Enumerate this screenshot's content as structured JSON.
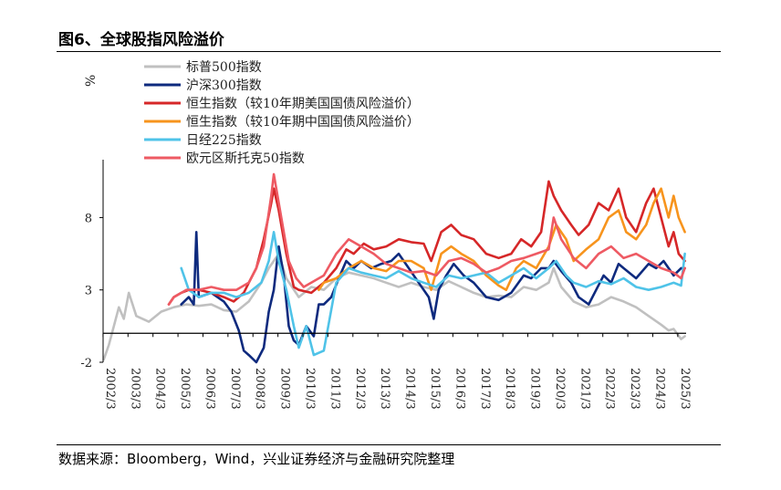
{
  "header": {
    "title": "图6、全球股指风险溢价"
  },
  "footer": {
    "source": "数据来源：Bloomberg，Wind，兴业证券经济与金融研究院整理"
  },
  "chart_data": {
    "type": "line",
    "title": "",
    "xlabel": "",
    "ylabel": "%",
    "ylim": [
      -2,
      12
    ],
    "yticks": [
      -2,
      3,
      8
    ],
    "xlim": [
      2002.17,
      2025.5
    ],
    "x_tick_labels": [
      "2002/3",
      "2003/3",
      "2004/3",
      "2005/3",
      "2006/3",
      "2007/3",
      "2008/3",
      "2009/3",
      "2010/3",
      "2011/3",
      "2012/3",
      "2013/3",
      "2014/3",
      "2015/3",
      "2016/3",
      "2017/3",
      "2018/3",
      "2019/3",
      "2020/3",
      "2021/3",
      "2022/3",
      "2023/3",
      "2024/3",
      "2025/3"
    ],
    "legend_position": "top-left",
    "grid": false,
    "series": [
      {
        "name": "标普500指数",
        "color": "#c0c0c0",
        "x": [
          2002.2,
          2002.4,
          2002.6,
          2002.8,
          2003.0,
          2003.2,
          2003.5,
          2004.0,
          2004.5,
          2005.0,
          2005.5,
          2006.0,
          2006.5,
          2007.0,
          2007.5,
          2008.0,
          2008.5,
          2008.8,
          2009.2,
          2009.5,
          2010.0,
          2010.5,
          2011.0,
          2011.5,
          2012.0,
          2012.5,
          2013.0,
          2013.5,
          2014.0,
          2014.5,
          2015.0,
          2015.5,
          2016.0,
          2016.5,
          2017.0,
          2017.5,
          2018.0,
          2018.5,
          2019.0,
          2019.5,
          2020.0,
          2020.2,
          2020.5,
          2021.0,
          2021.5,
          2022.0,
          2022.5,
          2023.0,
          2023.5,
          2024.0,
          2024.5,
          2024.8,
          2025.0,
          2025.3,
          2025.45
        ],
        "values": [
          -1.8,
          -0.8,
          0.5,
          1.8,
          1.0,
          2.8,
          1.2,
          0.8,
          1.5,
          1.8,
          2.0,
          1.9,
          2.0,
          1.6,
          1.5,
          2.2,
          3.5,
          4.5,
          5.5,
          3.8,
          2.5,
          3.2,
          3.0,
          3.8,
          4.2,
          4.0,
          3.8,
          3.5,
          3.2,
          3.5,
          3.2,
          3.0,
          3.6,
          3.2,
          2.8,
          2.5,
          2.6,
          2.5,
          3.2,
          3.0,
          3.5,
          4.5,
          3.2,
          2.2,
          1.8,
          2.0,
          2.5,
          2.2,
          1.8,
          1.2,
          0.6,
          0.2,
          0.3,
          -0.4,
          -0.2
        ]
      },
      {
        "name": "沪深300指数",
        "color": "#0e2a7e",
        "x": [
          2005.3,
          2005.6,
          2005.8,
          2005.9,
          2006.0,
          2006.5,
          2007.0,
          2007.3,
          2007.6,
          2007.8,
          2008.0,
          2008.3,
          2008.6,
          2008.8,
          2009.0,
          2009.2,
          2009.4,
          2009.6,
          2009.8,
          2010.0,
          2010.3,
          2010.6,
          2010.8,
          2011.0,
          2011.3,
          2011.6,
          2011.9,
          2012.2,
          2012.5,
          2012.9,
          2013.3,
          2013.7,
          2014.0,
          2014.4,
          2014.8,
          2015.2,
          2015.4,
          2015.6,
          2015.9,
          2016.2,
          2016.6,
          2017.0,
          2017.5,
          2018.0,
          2018.5,
          2019.0,
          2019.3,
          2019.7,
          2020.0,
          2020.2,
          2020.5,
          2020.9,
          2021.2,
          2021.6,
          2021.9,
          2022.2,
          2022.5,
          2022.8,
          2023.0,
          2023.5,
          2024.0,
          2024.3,
          2024.6,
          2024.8,
          2025.0,
          2025.3,
          2025.45
        ],
        "values": [
          2.0,
          2.5,
          2.0,
          7.0,
          2.5,
          2.8,
          2.2,
          1.5,
          0.2,
          -1.2,
          -1.5,
          -2.0,
          -1.0,
          1.5,
          3.0,
          6.0,
          4.0,
          0.5,
          -0.5,
          -0.8,
          0.5,
          -0.2,
          2.0,
          2.0,
          2.5,
          3.8,
          5.0,
          4.5,
          5.0,
          4.5,
          4.8,
          5.0,
          5.5,
          4.5,
          3.5,
          2.5,
          1.0,
          3.0,
          4.0,
          4.8,
          4.0,
          3.5,
          2.5,
          2.3,
          2.8,
          4.0,
          3.8,
          4.5,
          4.5,
          5.0,
          4.3,
          3.5,
          2.5,
          2.0,
          3.0,
          4.0,
          3.5,
          4.8,
          4.5,
          3.8,
          4.8,
          4.5,
          5.0,
          4.5,
          4.0,
          4.5,
          4.5
        ]
      },
      {
        "name": "恒生指数（较10年期美国国债风险溢价）",
        "color": "#d62728",
        "x": [
          2004.8,
          2005.0,
          2005.3,
          2005.6,
          2006.0,
          2006.5,
          2007.0,
          2007.4,
          2007.8,
          2008.0,
          2008.3,
          2008.6,
          2008.9,
          2009.0,
          2009.2,
          2009.5,
          2009.8,
          2010.0,
          2010.5,
          2011.0,
          2011.5,
          2011.9,
          2012.2,
          2012.6,
          2013.0,
          2013.5,
          2014.0,
          2014.5,
          2015.0,
          2015.3,
          2015.7,
          2016.1,
          2016.5,
          2017.0,
          2017.5,
          2018.0,
          2018.5,
          2018.9,
          2019.3,
          2019.7,
          2020.0,
          2020.2,
          2020.5,
          2020.9,
          2021.2,
          2021.6,
          2022.0,
          2022.4,
          2022.8,
          2023.1,
          2023.5,
          2023.9,
          2024.2,
          2024.5,
          2024.8,
          2025.0,
          2025.2,
          2025.45
        ],
        "values": [
          2.0,
          2.5,
          2.8,
          3.0,
          3.0,
          2.8,
          2.5,
          2.2,
          2.8,
          3.5,
          4.5,
          6.5,
          9.0,
          10.0,
          8.5,
          5.5,
          3.2,
          3.0,
          2.8,
          3.5,
          4.5,
          5.8,
          5.5,
          6.2,
          5.8,
          6.0,
          6.5,
          6.3,
          6.2,
          5.0,
          7.0,
          7.5,
          6.8,
          6.5,
          5.5,
          5.2,
          5.5,
          6.5,
          6.0,
          7.0,
          10.5,
          9.5,
          8.5,
          7.5,
          6.8,
          7.5,
          9.0,
          8.5,
          10.0,
          8.0,
          7.0,
          9.0,
          10.0,
          8.0,
          6.0,
          7.0,
          5.5,
          5.0
        ]
      },
      {
        "name": "恒生指数（较10年期中国国债风险溢价）",
        "color": "#f7941d",
        "x": [
          2010.8,
          2011.0,
          2011.5,
          2012.0,
          2012.5,
          2013.0,
          2013.5,
          2014.0,
          2014.5,
          2015.0,
          2015.3,
          2015.7,
          2016.1,
          2016.5,
          2017.0,
          2017.5,
          2018.0,
          2018.3,
          2018.7,
          2019.0,
          2019.5,
          2020.0,
          2020.3,
          2020.7,
          2021.0,
          2021.5,
          2022.0,
          2022.4,
          2022.8,
          2023.1,
          2023.5,
          2023.9,
          2024.2,
          2024.5,
          2024.8,
          2025.0,
          2025.2,
          2025.45
        ],
        "values": [
          3.0,
          3.5,
          3.8,
          4.5,
          5.0,
          4.5,
          4.3,
          5.0,
          5.0,
          4.5,
          3.0,
          5.5,
          6.0,
          5.5,
          5.0,
          4.0,
          3.3,
          3.0,
          4.5,
          5.0,
          4.5,
          6.0,
          7.5,
          6.5,
          5.0,
          5.8,
          6.5,
          8.0,
          8.5,
          7.0,
          6.5,
          7.5,
          9.0,
          10.0,
          8.0,
          9.5,
          8.0,
          7.0
        ]
      },
      {
        "name": "日经225指数",
        "color": "#4fc3e8",
        "x": [
          2005.3,
          2005.6,
          2006.0,
          2006.5,
          2007.0,
          2007.5,
          2008.0,
          2008.5,
          2008.8,
          2009.0,
          2009.2,
          2009.5,
          2009.8,
          2010.0,
          2010.3,
          2010.6,
          2011.0,
          2011.5,
          2012.0,
          2012.5,
          2013.0,
          2013.5,
          2014.0,
          2014.5,
          2015.0,
          2015.5,
          2016.0,
          2016.5,
          2017.0,
          2017.5,
          2018.0,
          2018.5,
          2019.0,
          2019.5,
          2020.0,
          2020.3,
          2020.7,
          2021.0,
          2021.5,
          2022.0,
          2022.5,
          2023.0,
          2023.5,
          2024.0,
          2024.5,
          2025.0,
          2025.3,
          2025.45
        ],
        "values": [
          4.5,
          3.0,
          2.5,
          2.8,
          2.8,
          2.5,
          2.8,
          3.5,
          5.0,
          7.0,
          5.0,
          3.0,
          0.5,
          -1.0,
          0.5,
          -1.5,
          -1.2,
          3.5,
          4.5,
          4.2,
          4.0,
          3.8,
          4.3,
          3.8,
          3.5,
          3.2,
          4.0,
          3.8,
          4.0,
          4.2,
          3.5,
          4.0,
          4.5,
          3.8,
          4.5,
          5.0,
          4.0,
          3.5,
          3.2,
          3.6,
          3.4,
          3.8,
          3.2,
          3.0,
          3.2,
          3.5,
          3.3,
          5.5
        ]
      },
      {
        "name": "欧元区斯托克50指数",
        "color": "#ee5a63",
        "x": [
          2004.8,
          2005.0,
          2005.5,
          2006.0,
          2006.5,
          2007.0,
          2007.5,
          2008.0,
          2008.3,
          2008.6,
          2008.9,
          2009.0,
          2009.3,
          2009.6,
          2009.9,
          2010.2,
          2010.5,
          2011.0,
          2011.5,
          2012.0,
          2012.5,
          2013.0,
          2013.5,
          2014.0,
          2014.5,
          2015.0,
          2015.5,
          2016.0,
          2016.5,
          2017.0,
          2017.5,
          2018.0,
          2018.5,
          2019.0,
          2019.5,
          2020.0,
          2020.2,
          2020.5,
          2021.0,
          2021.5,
          2022.0,
          2022.5,
          2023.0,
          2023.5,
          2024.0,
          2024.5,
          2025.0,
          2025.3,
          2025.45
        ],
        "values": [
          2.0,
          2.5,
          3.0,
          3.0,
          3.2,
          3.0,
          3.0,
          3.5,
          4.5,
          6.0,
          9.5,
          11.0,
          8.0,
          5.0,
          3.8,
          3.2,
          3.5,
          4.0,
          5.5,
          6.5,
          6.0,
          5.5,
          4.8,
          4.5,
          4.2,
          4.3,
          4.0,
          5.0,
          5.2,
          4.8,
          4.2,
          4.5,
          5.0,
          5.2,
          5.5,
          5.8,
          8.0,
          6.5,
          5.2,
          4.5,
          5.5,
          6.0,
          5.2,
          5.5,
          5.0,
          4.5,
          4.2,
          3.8,
          4.5
        ]
      }
    ]
  }
}
